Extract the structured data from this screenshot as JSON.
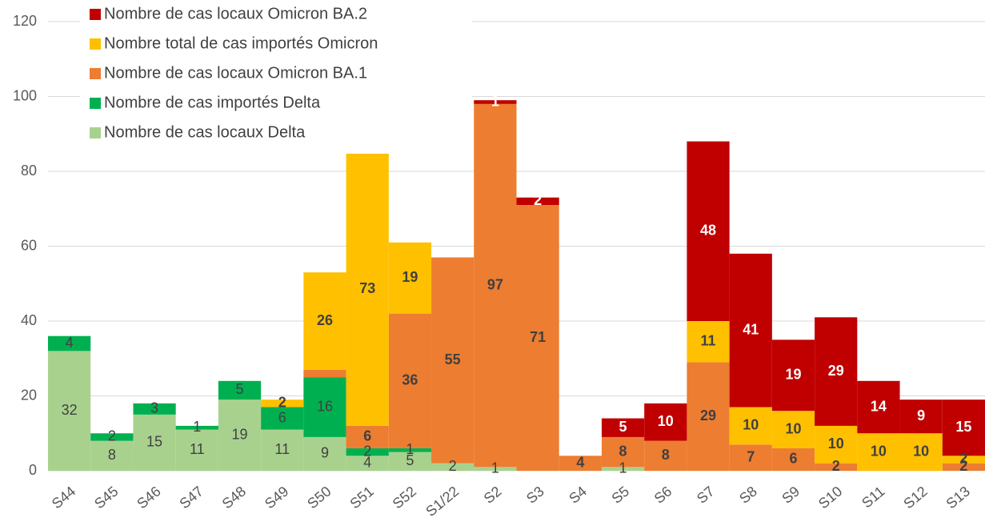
{
  "chart_data": {
    "type": "stacked-bar",
    "categories": [
      "S44",
      "S45",
      "S46",
      "S47",
      "S48",
      "S49",
      "S50",
      "S51",
      "S52",
      "S1/22",
      "S2",
      "S3",
      "S4",
      "S5",
      "S6",
      "S7",
      "S8",
      "S9",
      "S10",
      "S11",
      "S12",
      "S13"
    ],
    "series": [
      {
        "name": "Nombre de cas locaux Delta",
        "color": "#a9d18e",
        "label_color": "#404040",
        "label_bold": false,
        "values": [
          32,
          8,
          15,
          11,
          19,
          11,
          9,
          4,
          5,
          2,
          1,
          0,
          0,
          1,
          0,
          0,
          0,
          0,
          0,
          0,
          0,
          0
        ],
        "value_labels": [
          "32",
          "8",
          "15",
          "11",
          "19",
          "11",
          "9",
          "4",
          "5",
          "2",
          "1",
          null,
          null,
          "1",
          null,
          null,
          null,
          null,
          null,
          null,
          null,
          null
        ]
      },
      {
        "name": "Nombre de cas importés Delta",
        "color": "#00b050",
        "label_color": "#404040",
        "label_bold": false,
        "values": [
          4,
          2,
          3,
          1,
          5,
          6,
          16,
          2,
          1,
          0,
          0,
          0,
          0,
          0,
          0,
          0,
          0,
          0,
          0,
          0,
          0,
          0
        ],
        "value_labels": [
          "4",
          "2",
          "3",
          "1",
          "5",
          "6",
          "16",
          "2",
          "1",
          null,
          null,
          null,
          null,
          null,
          null,
          null,
          null,
          null,
          null,
          null,
          null,
          null
        ]
      },
      {
        "name": "Nombre de cas locaux Omicron BA.1",
        "color": "#ed7d31",
        "label_color": "#404040",
        "label_bold": true,
        "values": [
          0,
          0,
          0,
          0,
          0,
          0,
          2,
          6,
          36,
          55,
          97,
          71,
          4,
          8,
          8,
          29,
          7,
          6,
          2,
          0,
          0,
          2
        ],
        "value_labels": [
          null,
          null,
          null,
          null,
          null,
          null,
          null,
          "6",
          "36",
          "55",
          "97",
          "71",
          "4",
          "8",
          "8",
          "29",
          "7",
          "6",
          "2",
          null,
          null,
          "2"
        ]
      },
      {
        "name": "Nombre total de cas importés Omicron",
        "color": "#ffc000",
        "label_color": "#404040",
        "label_bold": true,
        "values": [
          0,
          0,
          0,
          0,
          0,
          2,
          26,
          73,
          19,
          0,
          0,
          0,
          0,
          0,
          0,
          11,
          10,
          10,
          10,
          10,
          10,
          2
        ],
        "value_labels": [
          null,
          null,
          null,
          null,
          null,
          "2",
          "26",
          "73",
          "19",
          null,
          null,
          null,
          null,
          null,
          null,
          "11",
          "10",
          "10",
          "10",
          "10",
          "10",
          "2"
        ]
      },
      {
        "name": "Nombre de cas locaux Omicron BA.2",
        "color": "#c00000",
        "label_color": "#ffffff",
        "label_bold": true,
        "values": [
          0,
          0,
          0,
          0,
          0,
          0,
          0,
          0,
          0,
          0,
          1,
          2,
          0,
          5,
          10,
          48,
          41,
          19,
          29,
          14,
          9,
          15
        ],
        "value_labels": [
          null,
          null,
          null,
          null,
          null,
          null,
          null,
          null,
          null,
          null,
          "1",
          "2",
          null,
          "5",
          "10",
          "48",
          "41",
          "19",
          "29",
          "14",
          "9",
          "15"
        ]
      }
    ],
    "ylim": [
      0,
      120
    ],
    "yticks": [
      0,
      20,
      40,
      60,
      80,
      100,
      120
    ],
    "grid": true
  }
}
